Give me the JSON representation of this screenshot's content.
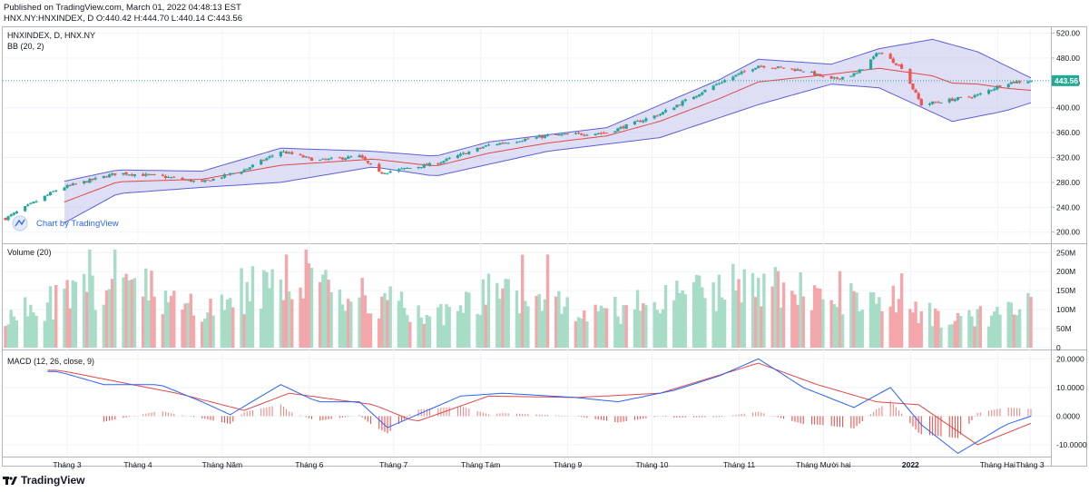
{
  "header": {
    "published": "Published on TradingView.com, March 01, 2022 04:48:13 EST",
    "ohlc": "HNX.NY:HNXINDEX, D O:440.42 H:444.70 L:440.14 C:443.56"
  },
  "footer": {
    "brand": "TradingView"
  },
  "colors": {
    "up": "#26a69a",
    "down": "#ef5350",
    "bb_fill": "#b5b7e8",
    "bb_line": "#5b5fd6",
    "basis": "#e04848",
    "macd": "#2962ff",
    "signal": "#e04848",
    "vol_up": "#a7dcc6",
    "vol_down": "#f4a7ab",
    "price_tag": "#22ab94"
  },
  "chart_data": [
    {
      "type": "candlestick",
      "title": "HNXINDEX, D, HNX.NY",
      "indicator": "BB (20, 2)",
      "watermark": "Chart by TradingView",
      "last_price": "443.56",
      "ylim": [
        185,
        528
      ],
      "y_ticks": [
        "520.00",
        "480.00",
        "440.00",
        "400.00",
        "360.00",
        "320.00",
        "280.00",
        "240.00",
        "200.00"
      ],
      "x_ticks": [
        "Tháng 3",
        "Tháng 4",
        "Tháng Năm",
        "Tháng 6",
        "Tháng 7",
        "Tháng Tám",
        "Tháng 9",
        "Tháng 10",
        "Tháng 11",
        "Tháng Mười hai",
        "2022",
        "Tháng Hai",
        "Tháng 3"
      ],
      "close_anchors": [
        {
          "date": "2021-03-01",
          "close": 222
        },
        {
          "date": "2021-03-20",
          "close": 270
        },
        {
          "date": "2021-04-10",
          "close": 295
        },
        {
          "date": "2021-04-25",
          "close": 290
        },
        {
          "date": "2021-05-10",
          "close": 280
        },
        {
          "date": "2021-05-25",
          "close": 300
        },
        {
          "date": "2021-06-07",
          "close": 330
        },
        {
          "date": "2021-06-20",
          "close": 315
        },
        {
          "date": "2021-07-05",
          "close": 322
        },
        {
          "date": "2021-07-12",
          "close": 295
        },
        {
          "date": "2021-08-01",
          "close": 310
        },
        {
          "date": "2021-08-20",
          "close": 340
        },
        {
          "date": "2021-09-10",
          "close": 355
        },
        {
          "date": "2021-10-01",
          "close": 360
        },
        {
          "date": "2021-10-20",
          "close": 390
        },
        {
          "date": "2021-11-10",
          "close": 440
        },
        {
          "date": "2021-11-24",
          "close": 468
        },
        {
          "date": "2021-12-10",
          "close": 460
        },
        {
          "date": "2021-12-20",
          "close": 445
        },
        {
          "date": "2021-12-29",
          "close": 455
        },
        {
          "date": "2022-01-06",
          "close": 490
        },
        {
          "date": "2022-01-14",
          "close": 465
        },
        {
          "date": "2022-01-21",
          "close": 405
        },
        {
          "date": "2022-02-10",
          "close": 420
        },
        {
          "date": "2022-02-20",
          "close": 440
        },
        {
          "date": "2022-03-01",
          "close": 443.56
        }
      ],
      "bb_upper_anchors": [
        {
          "date": "2021-03-20",
          "close": 280
        },
        {
          "date": "2021-04-10",
          "close": 300
        },
        {
          "date": "2021-05-10",
          "close": 298
        },
        {
          "date": "2021-06-07",
          "close": 335
        },
        {
          "date": "2021-07-10",
          "close": 330
        },
        {
          "date": "2021-08-01",
          "close": 322
        },
        {
          "date": "2021-08-20",
          "close": 345
        },
        {
          "date": "2021-10-01",
          "close": 368
        },
        {
          "date": "2021-11-10",
          "close": 445
        },
        {
          "date": "2021-11-24",
          "close": 478
        },
        {
          "date": "2021-12-20",
          "close": 470
        },
        {
          "date": "2022-01-06",
          "close": 495
        },
        {
          "date": "2022-01-25",
          "close": 510
        },
        {
          "date": "2022-02-10",
          "close": 490
        },
        {
          "date": "2022-03-01",
          "close": 448
        }
      ],
      "bb_lower_anchors": [
        {
          "date": "2021-03-20",
          "close": 210
        },
        {
          "date": "2021-04-10",
          "close": 262
        },
        {
          "date": "2021-05-10",
          "close": 272
        },
        {
          "date": "2021-06-07",
          "close": 280
        },
        {
          "date": "2021-07-10",
          "close": 305
        },
        {
          "date": "2021-08-01",
          "close": 290
        },
        {
          "date": "2021-09-10",
          "close": 330
        },
        {
          "date": "2021-10-20",
          "close": 352
        },
        {
          "date": "2021-11-24",
          "close": 405
        },
        {
          "date": "2021-12-20",
          "close": 438
        },
        {
          "date": "2022-01-06",
          "close": 432
        },
        {
          "date": "2022-02-01",
          "close": 378
        },
        {
          "date": "2022-02-20",
          "close": 395
        },
        {
          "date": "2022-03-01",
          "close": 408
        }
      ]
    },
    {
      "type": "bar",
      "title": "Volume (20)",
      "ylim": [
        0,
        265
      ],
      "y_ticks": [
        "250M",
        "200M",
        "150M",
        "100M",
        "50M",
        "0"
      ],
      "volume_anchors_millions": [
        {
          "date": "2021-03-01",
          "value": 95
        },
        {
          "date": "2021-03-25",
          "value": 130
        },
        {
          "date": "2021-04-10",
          "value": 180
        },
        {
          "date": "2021-04-25",
          "value": 150
        },
        {
          "date": "2021-05-10",
          "value": 100
        },
        {
          "date": "2021-05-25",
          "value": 110
        },
        {
          "date": "2021-06-07",
          "value": 205
        },
        {
          "date": "2021-06-20",
          "value": 150
        },
        {
          "date": "2021-07-10",
          "value": 130
        },
        {
          "date": "2021-08-01",
          "value": 80
        },
        {
          "date": "2021-08-20",
          "value": 140
        },
        {
          "date": "2021-09-10",
          "value": 135
        },
        {
          "date": "2021-10-01",
          "value": 90
        },
        {
          "date": "2021-10-20",
          "value": 135
        },
        {
          "date": "2021-11-10",
          "value": 150
        },
        {
          "date": "2021-11-24",
          "value": 175
        },
        {
          "date": "2021-12-20",
          "value": 120
        },
        {
          "date": "2022-01-10",
          "value": 130
        },
        {
          "date": "2022-02-01",
          "value": 70
        },
        {
          "date": "2022-02-20",
          "value": 95
        },
        {
          "date": "2022-03-01",
          "value": 120
        }
      ]
    },
    {
      "type": "line",
      "title": "MACD (12, 26, close, 9)",
      "ylim": [
        -13.5,
        22
      ],
      "y_ticks": [
        "20.0000",
        "10.0000",
        "0.0000",
        "-10.0000"
      ],
      "macd_anchors": [
        {
          "date": "2021-03-01",
          "value": 16
        },
        {
          "date": "2021-03-20",
          "value": 15.5
        },
        {
          "date": "2021-04-05",
          "value": 11
        },
        {
          "date": "2021-04-25",
          "value": 11
        },
        {
          "date": "2021-05-10",
          "value": 5
        },
        {
          "date": "2021-05-20",
          "value": 0.5
        },
        {
          "date": "2021-06-07",
          "value": 11
        },
        {
          "date": "2021-06-20",
          "value": 5
        },
        {
          "date": "2021-07-05",
          "value": 5
        },
        {
          "date": "2021-07-15",
          "value": -4
        },
        {
          "date": "2021-08-10",
          "value": 7
        },
        {
          "date": "2021-08-25",
          "value": 8
        },
        {
          "date": "2021-09-20",
          "value": 6.5
        },
        {
          "date": "2021-10-05",
          "value": 5
        },
        {
          "date": "2021-10-25",
          "value": 9
        },
        {
          "date": "2021-11-10",
          "value": 14
        },
        {
          "date": "2021-11-24",
          "value": 20
        },
        {
          "date": "2021-12-10",
          "value": 10
        },
        {
          "date": "2021-12-28",
          "value": 3
        },
        {
          "date": "2022-01-10",
          "value": 10
        },
        {
          "date": "2022-01-21",
          "value": -3
        },
        {
          "date": "2022-02-03",
          "value": -13
        },
        {
          "date": "2022-02-20",
          "value": -3
        },
        {
          "date": "2022-03-01",
          "value": 0
        }
      ],
      "signal_anchors": [
        {
          "date": "2021-03-01",
          "value": 16
        },
        {
          "date": "2021-03-20",
          "value": 16
        },
        {
          "date": "2021-04-10",
          "value": 12
        },
        {
          "date": "2021-05-01",
          "value": 8
        },
        {
          "date": "2021-05-25",
          "value": 2
        },
        {
          "date": "2021-06-10",
          "value": 8
        },
        {
          "date": "2021-06-25",
          "value": 6
        },
        {
          "date": "2021-07-10",
          "value": 4
        },
        {
          "date": "2021-07-25",
          "value": -2
        },
        {
          "date": "2021-08-20",
          "value": 7
        },
        {
          "date": "2021-09-20",
          "value": 6.5
        },
        {
          "date": "2021-10-20",
          "value": 8
        },
        {
          "date": "2021-11-24",
          "value": 18.5
        },
        {
          "date": "2021-12-15",
          "value": 11
        },
        {
          "date": "2022-01-05",
          "value": 5
        },
        {
          "date": "2022-01-20",
          "value": 4
        },
        {
          "date": "2022-02-10",
          "value": -10
        },
        {
          "date": "2022-03-01",
          "value": -2.5
        }
      ]
    }
  ]
}
